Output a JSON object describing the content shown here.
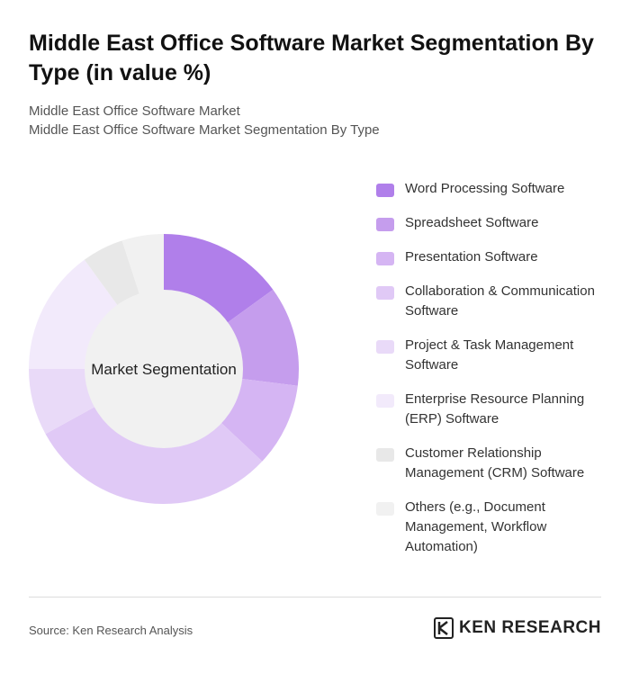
{
  "header": {
    "title": "Middle East Office Software Market Segmentation By Type (in value %)",
    "subtitle_line1": "Middle East Office Software Market",
    "subtitle_line2": "Middle East Office Software Market Segmentation By Type"
  },
  "chart_data": {
    "type": "pie",
    "variant": "donut",
    "center_label": "Market Segmentation",
    "legend_position": "right",
    "categories": [
      "Word Processing Software",
      "Spreadsheet Software",
      "Presentation Software",
      "Collaboration & Communication Software",
      "Project & Task Management Software",
      "Enterprise Resource Planning (ERP) Software",
      "Customer Relationship Management (CRM) Software",
      "Others (e.g., Document Management, Workflow Automation)"
    ],
    "values": [
      15,
      12,
      10,
      30,
      8,
      15,
      5,
      5
    ],
    "colors": [
      "#b07fea",
      "#c59ded",
      "#d5b5f3",
      "#e0c9f6",
      "#e9daf8",
      "#f2eafb",
      "#e8e8e8",
      "#f1f1f1"
    ]
  },
  "footer": {
    "source": "Source: Ken Research Analysis",
    "brand": "KEN RESEARCH",
    "brand_logo_icon": "ken-research-logo-icon"
  }
}
